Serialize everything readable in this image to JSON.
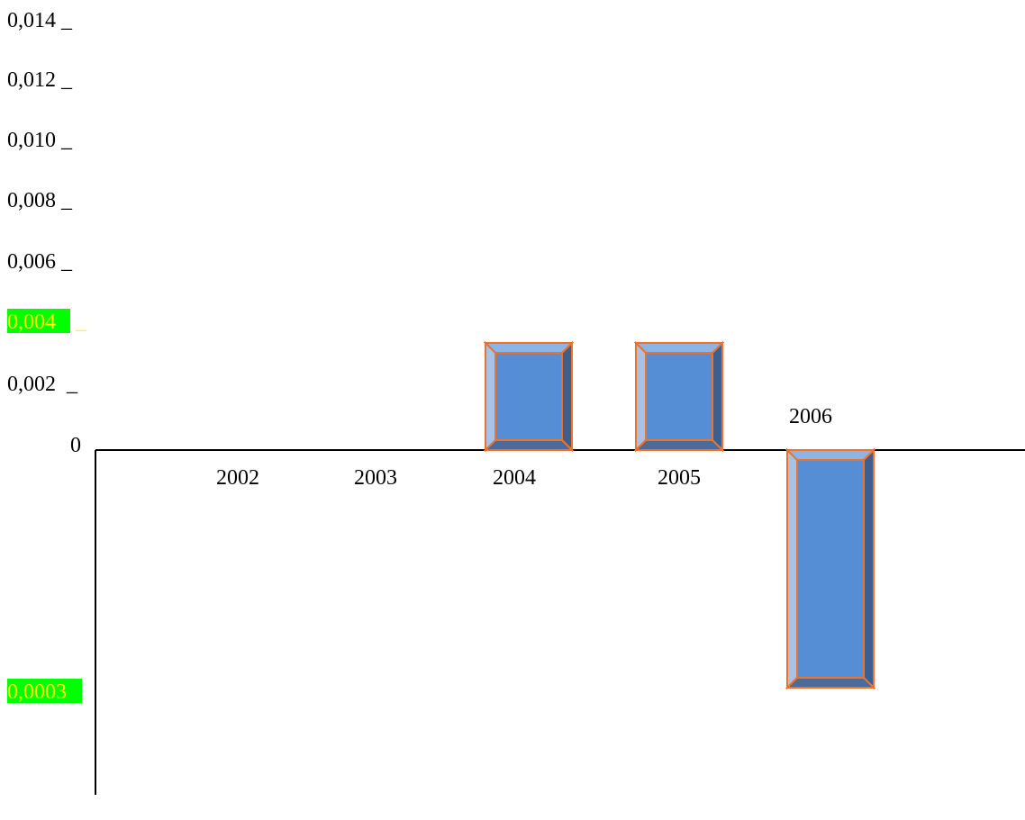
{
  "chart_data": {
    "type": "bar",
    "title": "",
    "xlabel": "",
    "ylabel": "",
    "y_tick_labels": [
      "0,014 _",
      "0,012 _",
      "0,010 _",
      "0,008 _",
      "0,006 _",
      "0,004 _",
      "0,002  _",
      "0"
    ],
    "highlighted_tick": {
      "text": "0,004",
      "mark": "_",
      "background": "#00ff00",
      "color": "#ffff00"
    },
    "negative_annotation": {
      "text": "0,0003",
      "background": "#00ff00",
      "color": "#ffff00"
    },
    "categories": [
      "2002",
      "2003",
      "2004",
      "2005",
      "2006"
    ],
    "values": [
      0,
      0,
      0.0036,
      0.0036,
      -0.0003
    ],
    "colors": {
      "bar_face": "#558ed5",
      "bar_outline": "#f07228",
      "bevel_top": "#8eb4e3",
      "bevel_left": "#a6c2e6",
      "bevel_right": "#3b5f8f",
      "bevel_bottom": "#4a6c9c",
      "axis": "#000000"
    }
  }
}
